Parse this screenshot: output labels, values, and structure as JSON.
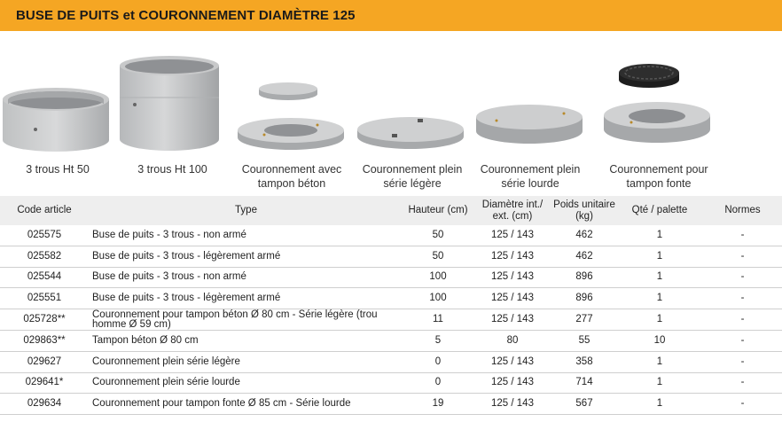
{
  "title": "BUSE DE PUITS et COURONNEMENT DIAMÈTRE 125",
  "products": [
    {
      "caption": "3 trous Ht 50",
      "icon": "concrete-ring-short-icon"
    },
    {
      "caption": "3 trous Ht 100",
      "icon": "concrete-ring-tall-icon"
    },
    {
      "caption": "Couronnement avec tampon béton",
      "icon": "crown-with-concrete-lid-icon"
    },
    {
      "caption": "Couronnement plein série légère",
      "icon": "solid-crown-light-icon"
    },
    {
      "caption": "Couronnement plein série lourde",
      "icon": "solid-crown-heavy-icon"
    },
    {
      "caption": "Couronnement pour tampon fonte",
      "icon": "crown-with-cast-iron-lid-icon"
    }
  ],
  "table": {
    "headers": {
      "code": "Code article",
      "type": "Type",
      "hauteur": "Hauteur (cm)",
      "diametre": "Diamètre int./ ext. (cm)",
      "poids": "Poids unitaire (kg)",
      "qte": "Qté / palette",
      "normes": "Normes"
    },
    "rows": [
      {
        "code": "025575",
        "type": "Buse de puits - 3 trous - non armé",
        "hauteur": "50",
        "diametre": "125 / 143",
        "poids": "462",
        "qte": "1",
        "normes": "-"
      },
      {
        "code": "025582",
        "type": "Buse de puits - 3 trous - légèrement armé",
        "hauteur": "50",
        "diametre": "125 / 143",
        "poids": "462",
        "qte": "1",
        "normes": "-"
      },
      {
        "code": "025544",
        "type": "Buse de puits - 3 trous - non armé",
        "hauteur": "100",
        "diametre": "125 / 143",
        "poids": "896",
        "qte": "1",
        "normes": "-"
      },
      {
        "code": "025551",
        "type": "Buse de puits - 3 trous - légèrement armé",
        "hauteur": "100",
        "diametre": "125 / 143",
        "poids": "896",
        "qte": "1",
        "normes": "-"
      },
      {
        "code": "025728**",
        "type": "Couronnement pour tampon béton Ø 80 cm - Série légère (trou homme Ø 59 cm)",
        "hauteur": "11",
        "diametre": "125 / 143",
        "poids": "277",
        "qte": "1",
        "normes": "-"
      },
      {
        "code": "029863**",
        "type": "Tampon béton Ø 80 cm",
        "hauteur": "5",
        "diametre": "80",
        "poids": "55",
        "qte": "10",
        "normes": "-"
      },
      {
        "code": "029627",
        "type": "Couronnement plein série légère",
        "hauteur": "0",
        "diametre": "125 / 143",
        "poids": "358",
        "qte": "1",
        "normes": "-"
      },
      {
        "code": "029641*",
        "type": "Couronnement plein série lourde",
        "hauteur": "0",
        "diametre": "125 / 143",
        "poids": "714",
        "qte": "1",
        "normes": "-"
      },
      {
        "code": "029634",
        "type": "Couronnement pour tampon fonte Ø 85 cm - Série lourde",
        "hauteur": "19",
        "diametre": "125 / 143",
        "poids": "567",
        "qte": "1",
        "normes": "-"
      }
    ]
  }
}
